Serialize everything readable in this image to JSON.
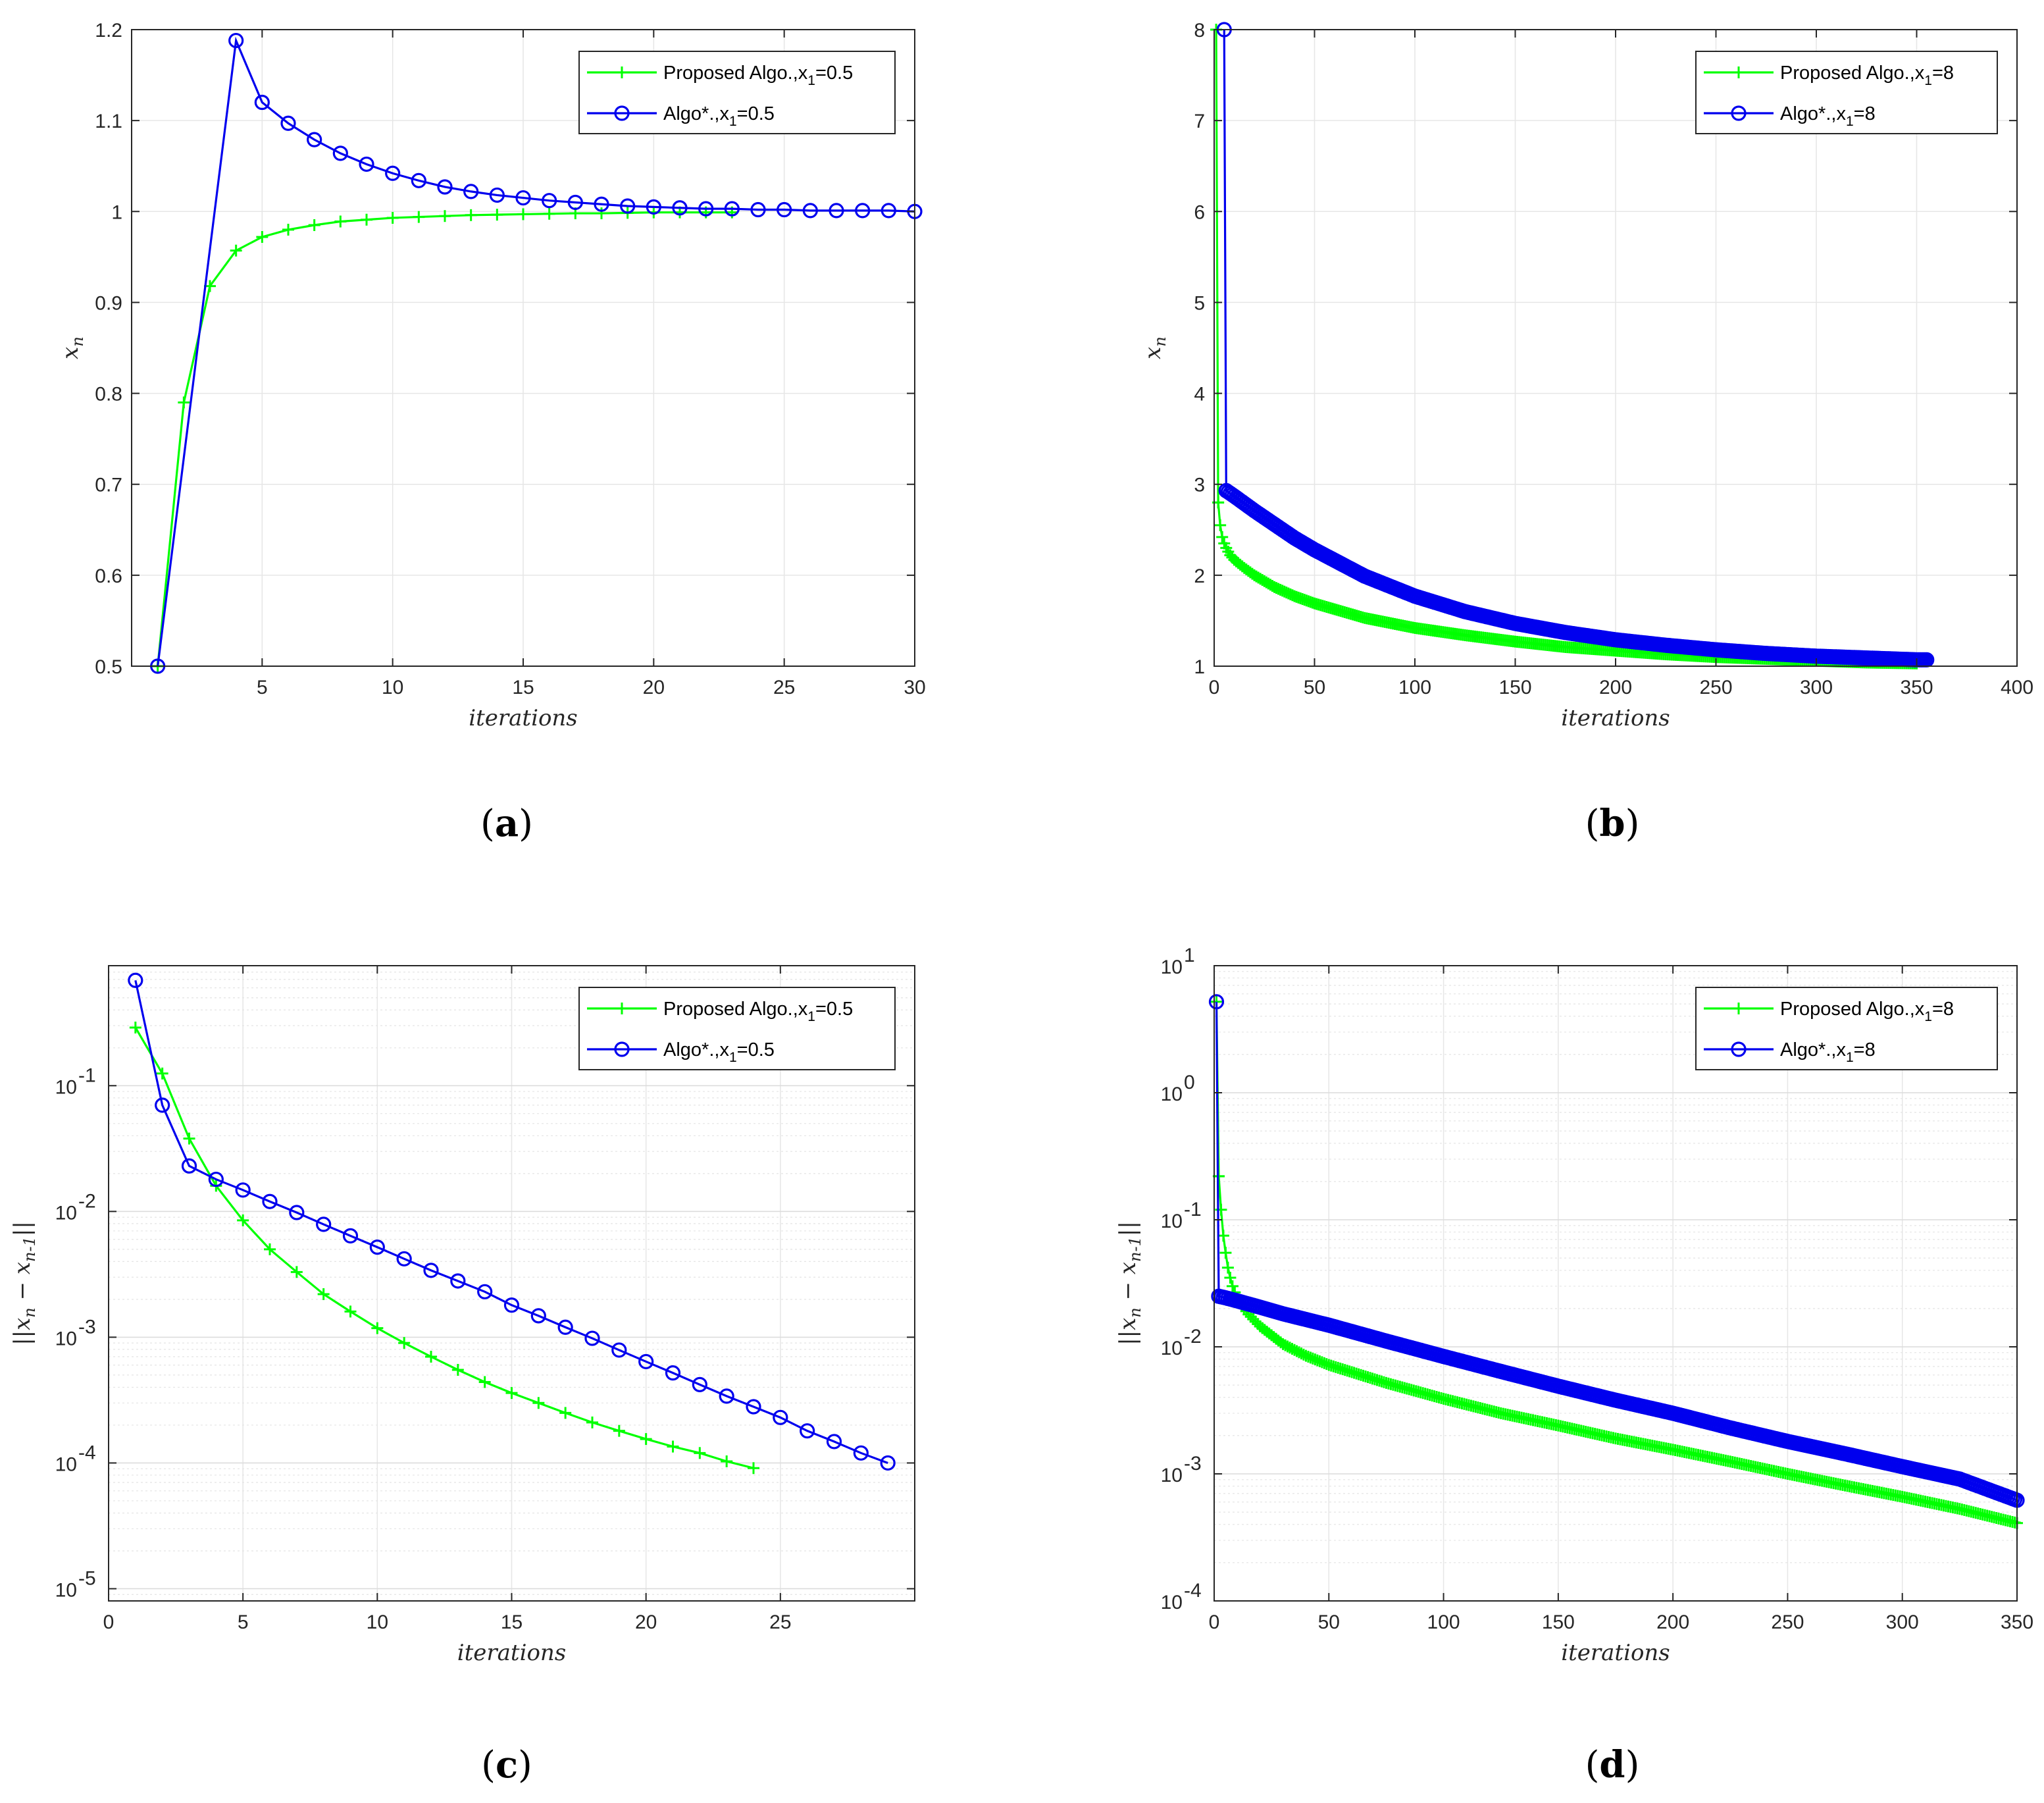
{
  "colors": {
    "green": "#00ff00",
    "blue": "#0000ee",
    "grid": "#e6e6e6",
    "axis": "#262626"
  },
  "chart_data": [
    {
      "id": "a",
      "type": "line",
      "panel_label": "(a)",
      "xlabel": "iterations",
      "ylabel_symbol": "x",
      "ylabel_sub": "n",
      "yscale": "linear",
      "xlim": [
        0,
        30
      ],
      "ylim": [
        0.5,
        1.2
      ],
      "xticks": [
        5,
        10,
        15,
        20,
        25,
        30
      ],
      "xtick_labels": [
        "5",
        "10",
        "15",
        "20",
        "25",
        "30"
      ],
      "yticks": [
        0.5,
        0.6,
        0.7,
        0.8,
        0.9,
        1.0,
        1.1,
        1.2
      ],
      "ytick_labels": [
        "0.5",
        "0.6",
        "0.7",
        "0.8",
        "0.9",
        "1",
        "1.1",
        "1.2"
      ],
      "legend_position": "top-right",
      "series": [
        {
          "name": "Proposed Algo.,x",
          "legend_sub": "1",
          "legend_tail": "=0.5",
          "color": "green",
          "marker": "plus",
          "x": [
            1,
            2,
            3,
            4,
            5,
            6,
            7,
            8,
            9,
            10,
            11,
            12,
            13,
            14,
            15,
            16,
            17,
            18,
            19,
            20,
            21,
            22,
            23
          ],
          "y": [
            0.5,
            0.79,
            0.918,
            0.957,
            0.972,
            0.98,
            0.985,
            0.989,
            0.991,
            0.993,
            0.994,
            0.995,
            0.996,
            0.9965,
            0.997,
            0.9975,
            0.998,
            0.998,
            0.9985,
            0.999,
            0.999,
            0.999,
            0.999
          ]
        },
        {
          "name": "Algo*.,x",
          "legend_sub": "1",
          "legend_tail": "=0.5",
          "color": "blue",
          "marker": "circle",
          "x": [
            1,
            4,
            5,
            6,
            7,
            8,
            9,
            10,
            11,
            12,
            13,
            14,
            15,
            16,
            17,
            18,
            19,
            20,
            21,
            22,
            23,
            24,
            25,
            26,
            27,
            28,
            29,
            30
          ],
          "y": [
            0.5,
            1.188,
            1.12,
            1.097,
            1.079,
            1.064,
            1.052,
            1.042,
            1.034,
            1.027,
            1.022,
            1.018,
            1.015,
            1.012,
            1.01,
            1.008,
            1.006,
            1.005,
            1.004,
            1.003,
            1.003,
            1.002,
            1.002,
            1.001,
            1.001,
            1.001,
            1.001,
            1.0
          ]
        }
      ]
    },
    {
      "id": "b",
      "type": "line",
      "panel_label": "(b)",
      "xlabel": "iterations",
      "ylabel_symbol": "x",
      "ylabel_sub": "n",
      "yscale": "linear",
      "xlim": [
        0,
        400
      ],
      "ylim": [
        1,
        8
      ],
      "xticks": [
        0,
        50,
        100,
        150,
        200,
        250,
        300,
        350,
        400
      ],
      "xtick_labels": [
        "0",
        "50",
        "100",
        "150",
        "200",
        "250",
        "300",
        "350",
        "400"
      ],
      "yticks": [
        1,
        2,
        3,
        4,
        5,
        6,
        7,
        8
      ],
      "ytick_labels": [
        "1",
        "2",
        "3",
        "4",
        "5",
        "6",
        "7",
        "8"
      ],
      "legend_position": "top-right",
      "series": [
        {
          "name": "Proposed Algo.,x",
          "legend_sub": "1",
          "legend_tail": "=8",
          "color": "green",
          "marker": "plus",
          "x": [
            1,
            2,
            3,
            4,
            5,
            6,
            7,
            8,
            10,
            15,
            20,
            30,
            40,
            50,
            75,
            100,
            125,
            150,
            175,
            200,
            225,
            250,
            275,
            300,
            325,
            350
          ],
          "y": [
            8,
            2.8,
            2.55,
            2.42,
            2.35,
            2.3,
            2.26,
            2.22,
            2.17,
            2.08,
            2.0,
            1.87,
            1.77,
            1.69,
            1.53,
            1.42,
            1.34,
            1.27,
            1.21,
            1.17,
            1.13,
            1.1,
            1.08,
            1.06,
            1.04,
            1.03
          ]
        },
        {
          "name": "Algo*.,x",
          "legend_sub": "1",
          "legend_tail": "=8",
          "color": "blue",
          "marker": "circle",
          "x": [
            5,
            6,
            8,
            10,
            15,
            20,
            30,
            40,
            50,
            75,
            100,
            125,
            150,
            175,
            200,
            225,
            250,
            275,
            300,
            325,
            350,
            355
          ],
          "y": [
            8,
            2.93,
            2.9,
            2.87,
            2.79,
            2.71,
            2.56,
            2.41,
            2.28,
            1.99,
            1.77,
            1.6,
            1.47,
            1.37,
            1.29,
            1.23,
            1.18,
            1.14,
            1.11,
            1.09,
            1.07,
            1.07
          ]
        }
      ]
    },
    {
      "id": "c",
      "type": "line",
      "panel_label": "(c)",
      "xlabel": "iterations",
      "ylabel_symbol": "||x",
      "ylabel_sub": "n",
      "ylabel_mid": " − x",
      "ylabel_sub2": "n-1",
      "ylabel_end": "||",
      "yscale": "log",
      "xlim": [
        0,
        30
      ],
      "ylim": [
        8e-06,
        0.9
      ],
      "xticks": [
        0,
        5,
        10,
        15,
        20,
        25
      ],
      "xtick_labels": [
        "0",
        "5",
        "10",
        "15",
        "20",
        "25"
      ],
      "yticks": [
        1e-05,
        0.0001,
        0.001,
        0.01,
        0.1
      ],
      "ytick_base": [
        "10",
        "10",
        "10",
        "10",
        "10"
      ],
      "ytick_exp": [
        "-5",
        "-4",
        "-3",
        "-2",
        "-1"
      ],
      "legend_position": "top-right",
      "series": [
        {
          "name": "Proposed Algo.,x",
          "legend_sub": "1",
          "legend_tail": "=0.5",
          "color": "green",
          "marker": "plus",
          "x": [
            1,
            2,
            3,
            4,
            5,
            6,
            7,
            8,
            9,
            10,
            11,
            12,
            13,
            14,
            15,
            16,
            17,
            18,
            19,
            20,
            21,
            22,
            23,
            24
          ],
          "y": [
            0.29,
            0.125,
            0.038,
            0.016,
            0.0085,
            0.005,
            0.0033,
            0.0022,
            0.0016,
            0.00118,
            0.0009,
            0.0007,
            0.00055,
            0.00044,
            0.00036,
            0.0003,
            0.00025,
            0.00021,
            0.00018,
            0.000155,
            0.000135,
            0.00012,
            0.000103,
            9.1e-05
          ]
        },
        {
          "name": "Algo*.,x",
          "legend_sub": "1",
          "legend_tail": "=0.5",
          "color": "blue",
          "marker": "circle",
          "x": [
            1,
            2,
            3,
            4,
            5,
            6,
            7,
            8,
            9,
            10,
            11,
            12,
            13,
            14,
            15,
            16,
            17,
            18,
            19,
            20,
            21,
            22,
            23,
            24,
            25,
            26,
            27,
            28,
            29
          ],
          "y": [
            0.688,
            0.07,
            0.023,
            0.018,
            0.0148,
            0.012,
            0.0098,
            0.0079,
            0.0064,
            0.0052,
            0.0042,
            0.0034,
            0.0028,
            0.0023,
            0.0018,
            0.00148,
            0.0012,
            0.00098,
            0.00079,
            0.00064,
            0.00052,
            0.00042,
            0.00034,
            0.00028,
            0.00023,
            0.00018,
            0.000148,
            0.00012,
            0.0001
          ]
        }
      ]
    },
    {
      "id": "d",
      "type": "line",
      "panel_label": "(d)",
      "xlabel": "iterations",
      "ylabel_symbol": "||x",
      "ylabel_sub": "n",
      "ylabel_mid": " − x",
      "ylabel_sub2": "n-1",
      "ylabel_end": "||",
      "yscale": "log",
      "xlim": [
        0,
        350
      ],
      "ylim": [
        0.0001,
        10
      ],
      "xticks": [
        0,
        50,
        100,
        150,
        200,
        250,
        300,
        350
      ],
      "xtick_labels": [
        "0",
        "50",
        "100",
        "150",
        "200",
        "250",
        "300",
        "350"
      ],
      "yticks": [
        0.0001,
        0.001,
        0.01,
        0.1,
        1,
        10
      ],
      "ytick_base": [
        "10",
        "10",
        "10",
        "10",
        "10",
        "10"
      ],
      "ytick_exp": [
        "-4",
        "-3",
        "-2",
        "-1",
        "0",
        "1"
      ],
      "legend_position": "top-right",
      "series": [
        {
          "name": "Proposed Algo.,x",
          "legend_sub": "1",
          "legend_tail": "=8",
          "color": "green",
          "marker": "plus",
          "x": [
            1,
            2,
            3,
            4,
            5,
            6,
            7,
            8,
            10,
            15,
            20,
            30,
            40,
            50,
            75,
            100,
            125,
            150,
            175,
            200,
            225,
            250,
            275,
            300,
            325,
            350
          ],
          "y": [
            5.2,
            0.22,
            0.12,
            0.075,
            0.055,
            0.042,
            0.035,
            0.03,
            0.024,
            0.018,
            0.0145,
            0.0105,
            0.0085,
            0.0072,
            0.0052,
            0.0039,
            0.003,
            0.0024,
            0.0019,
            0.00155,
            0.00125,
            0.001,
            0.00081,
            0.00066,
            0.00053,
            0.00041
          ]
        },
        {
          "name": "Algo*.,x",
          "legend_sub": "1",
          "legend_tail": "=8",
          "color": "blue",
          "marker": "circle",
          "x": [
            1,
            2,
            5,
            10,
            20,
            30,
            50,
            75,
            100,
            125,
            150,
            175,
            200,
            225,
            250,
            275,
            300,
            325,
            350
          ],
          "y": [
            5.2,
            0.025,
            0.0243,
            0.023,
            0.0205,
            0.0182,
            0.0148,
            0.0111,
            0.0084,
            0.0064,
            0.0049,
            0.0038,
            0.003,
            0.0023,
            0.0018,
            0.00144,
            0.00114,
            0.00091,
            0.00062
          ]
        }
      ]
    }
  ]
}
